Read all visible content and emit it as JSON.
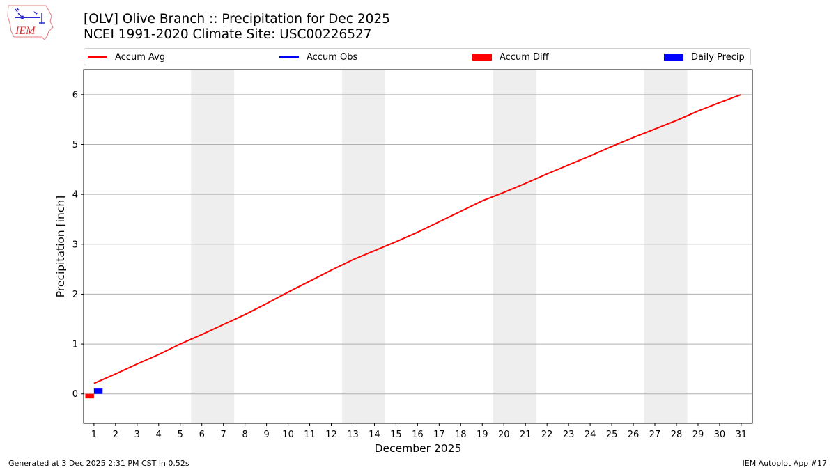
{
  "header": {
    "logo_text": "IEM",
    "title_line1": "[OLV] Olive Branch :: Precipitation for Dec 2025",
    "title_line2": "NCEI 1991-2020 Climate Site: USC00226527"
  },
  "legend": {
    "items": [
      {
        "label": "Accum Avg",
        "kind": "line",
        "color": "#ff0000"
      },
      {
        "label": "Accum Obs",
        "kind": "line",
        "color": "#0000ff"
      },
      {
        "label": "Accum Diff",
        "kind": "patch",
        "color": "#ff0000"
      },
      {
        "label": "Daily Precip",
        "kind": "patch",
        "color": "#0000ff"
      }
    ]
  },
  "footer": {
    "generated": "Generated at 3 Dec 2025 2:31 PM CST in 0.52s",
    "app": "IEM Autoplot App #17"
  },
  "colors": {
    "accum_avg": "#ff0000",
    "accum_obs": "#0000ff",
    "accum_diff": "#ff0000",
    "daily_precip": "#0000ff",
    "weekend_shade": "#eeeeee",
    "grid": "#b0b0b0"
  },
  "chart_data": {
    "type": "line",
    "title": "[OLV] Olive Branch :: Precipitation for Dec 2025\nNCEI 1991-2020 Climate Site: USC00226527",
    "xlabel": "December 2025",
    "ylabel": "Precipitation [inch]",
    "x": [
      1,
      2,
      3,
      4,
      5,
      6,
      7,
      8,
      9,
      10,
      11,
      12,
      13,
      14,
      15,
      16,
      17,
      18,
      19,
      20,
      21,
      22,
      23,
      24,
      25,
      26,
      27,
      28,
      29,
      30,
      31
    ],
    "x_tick_labels": [
      "1",
      "2",
      "3",
      "4",
      "5",
      "6",
      "7",
      "8",
      "9",
      "10",
      "11",
      "12",
      "13",
      "14",
      "15",
      "16",
      "17",
      "18",
      "19",
      "20",
      "21",
      "22",
      "23",
      "24",
      "25",
      "26",
      "27",
      "28",
      "29",
      "30",
      "31"
    ],
    "xlim": [
      0.52,
      31.52
    ],
    "ylim": [
      -0.59,
      6.5
    ],
    "y_ticks": [
      0,
      1,
      2,
      3,
      4,
      5,
      6
    ],
    "grid": "y",
    "legend_position": "top, above plot",
    "weekend_shading_days": [
      [
        6,
        7
      ],
      [
        13,
        14
      ],
      [
        20,
        21
      ],
      [
        27,
        28
      ]
    ],
    "series": [
      {
        "name": "Accum Avg",
        "type": "line",
        "color": "#ff0000",
        "values": [
          0.21,
          0.4,
          0.6,
          0.79,
          1.0,
          1.19,
          1.39,
          1.59,
          1.81,
          2.04,
          2.26,
          2.48,
          2.69,
          2.87,
          3.05,
          3.24,
          3.45,
          3.66,
          3.87,
          4.04,
          4.22,
          4.41,
          4.59,
          4.77,
          4.96,
          5.14,
          5.31,
          5.48,
          5.67,
          5.84,
          6.0
        ]
      },
      {
        "name": "Accum Obs",
        "type": "line",
        "color": "#0000ff",
        "values": [
          0.12
        ]
      },
      {
        "name": "Accum Diff",
        "type": "bar",
        "color": "#ff0000",
        "x": [
          1
        ],
        "values": [
          -0.09
        ],
        "offset": -0.2
      },
      {
        "name": "Daily Precip",
        "type": "bar",
        "color": "#0000ff",
        "x": [
          1
        ],
        "values": [
          0.12
        ],
        "offset": 0.2
      }
    ]
  }
}
